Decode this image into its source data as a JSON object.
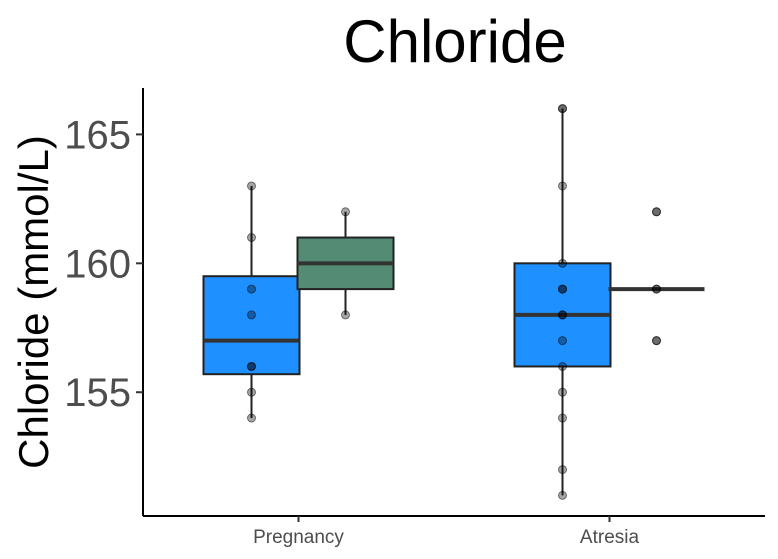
{
  "chart_data": {
    "type": "boxplot",
    "title": "Chloride",
    "ylabel": "Chloride (mmol/L)",
    "xlabel": "",
    "categories": [
      "Pregnancy",
      "Atresia"
    ],
    "ylim": [
      150.2,
      166.8
    ],
    "yticks": [
      155,
      160,
      165
    ],
    "grid": false,
    "legend": "none",
    "series": [
      {
        "color": "#1E90FF",
        "boxes": [
          {
            "category": "Pregnancy",
            "min": 154,
            "q1": 155.7,
            "median": 157,
            "q3": 159.5,
            "max": 163,
            "points": [
              163,
              161,
              159,
              158,
              156,
              156,
              155,
              154
            ]
          },
          {
            "category": "Atresia",
            "min": 151,
            "q1": 156,
            "median": 158,
            "q3": 160,
            "max": 166,
            "points": [
              166,
              166,
              163,
              160,
              159,
              159,
              158,
              158,
              157,
              156,
              155,
              154,
              152,
              151
            ]
          }
        ]
      },
      {
        "color": "#548B74",
        "boxes": [
          {
            "category": "Pregnancy",
            "min": 158,
            "q1": 159,
            "median": 160,
            "q3": 161,
            "max": 162,
            "points": [
              162,
              158
            ]
          },
          {
            "category": "Atresia",
            "min": 159,
            "q1": 159,
            "median": 159,
            "q3": 159,
            "max": 159,
            "points": [
              162,
              162,
              159,
              159,
              157,
              157
            ]
          }
        ]
      }
    ]
  }
}
